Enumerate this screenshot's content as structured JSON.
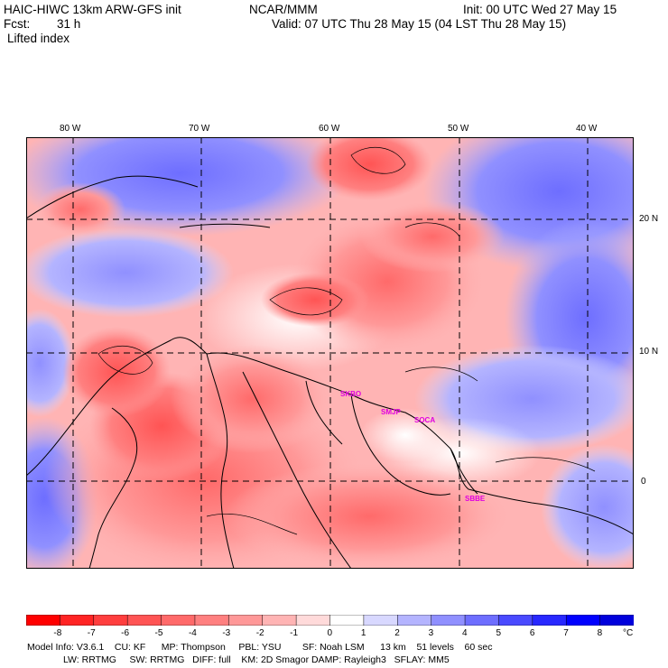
{
  "header": {
    "model": "HAIC-HIWC 13km ARW-GFS init",
    "org": "NCAR/MMM",
    "init": "Init: 00 UTC Wed 27 May 15",
    "fcst_label": "Fcst:",
    "fcst_value": "31 h",
    "valid": "Valid: 07 UTC Thu 28 May 15 (04 LST Thu 28 May 15)",
    "field": "Lifted index"
  },
  "map": {
    "lon_labels": [
      "80 W",
      "70 W",
      "60 W",
      "50 W",
      "40 W"
    ],
    "lat_labels": [
      "20 N",
      "10 N",
      "0"
    ],
    "stations": [
      "SKBO",
      "SMJP",
      "SOCA",
      "SBBE"
    ]
  },
  "colorbar": {
    "labels": [
      "-8",
      "-7",
      "-6",
      "-5",
      "-4",
      "-3",
      "-2",
      "-1",
      "0",
      "1",
      "2",
      "3",
      "4",
      "5",
      "6",
      "7",
      "8"
    ],
    "unit": "°C",
    "colors": [
      "#ff0000",
      "#ff2424",
      "#ff3e3e",
      "#ff5454",
      "#ff6a6a",
      "#ff8080",
      "#ff9898",
      "#ffb4b4",
      "#ffdada",
      "#ffffff",
      "#d8d8ff",
      "#b4b4ff",
      "#9090ff",
      "#6e6eff",
      "#4a4aff",
      "#2828ff",
      "#0000ff",
      "#0000dc"
    ]
  },
  "footer": {
    "line1": "Model Info: V3.6.1    CU: KF      MP: Thompson     PBL: YSU        SF: Noah LSM      13 km    51 levels    60 sec",
    "line2": "LW: RRTMG     SW: RRTMG   DIFF: full    KM: 2D Smagor DAMP: Rayleigh3   SFLAY: MM5"
  }
}
